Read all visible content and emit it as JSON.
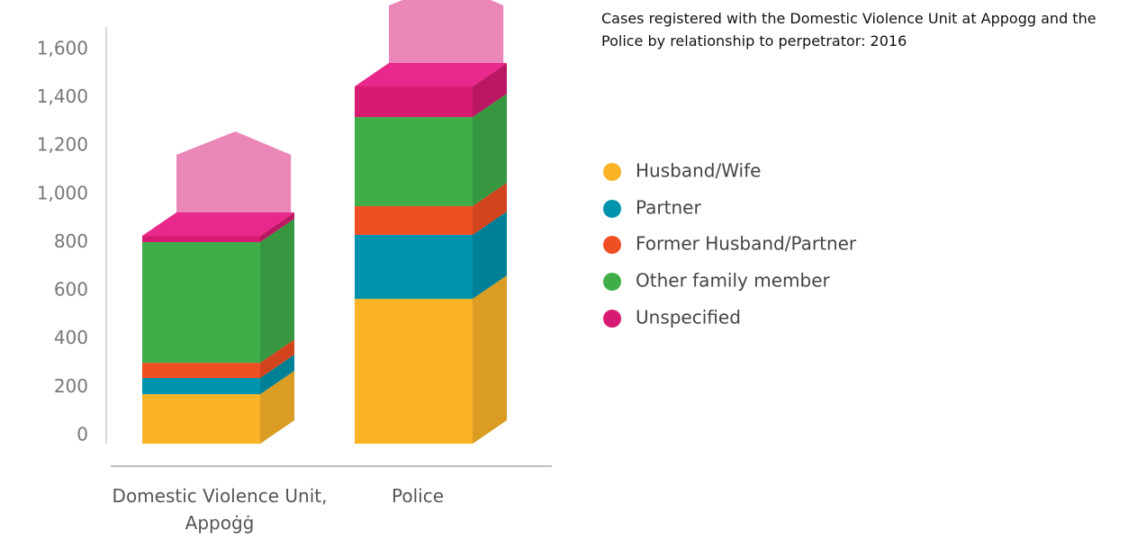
{
  "chart_data": {
    "type": "bar3d-stacked",
    "title": "Cases registered with the Domestic Violence Unit at Appogg and the Police by relationship to perpetrator: 2016",
    "categories": [
      "Domestic Violence Unit, Appoġġ",
      "Police"
    ],
    "series": [
      {
        "name": "Husband/Wife",
        "color": "#fbb327",
        "values": [
          205,
          600
        ]
      },
      {
        "name": "Partner",
        "color": "#0093ad",
        "values": [
          67,
          265
        ]
      },
      {
        "name": "Former Husband/Partner",
        "color": "#f04e23",
        "values": [
          63,
          119
        ]
      },
      {
        "name": "Other family member",
        "color": "#3fae49",
        "values": [
          500,
          369
        ]
      },
      {
        "name": "Unspecified",
        "color": "#d81b72",
        "values": [
          26,
          127
        ]
      }
    ],
    "ylim": [
      0,
      1700
    ],
    "yticks": [
      0,
      200,
      400,
      600,
      800,
      {
        "value": 1000,
        "label": "1,000"
      },
      {
        "value": 1200,
        "label": "1,200"
      },
      {
        "value": 1400,
        "label": "1,400"
      },
      {
        "value": 1600,
        "label": "1,600"
      }
    ],
    "legend": "right"
  }
}
